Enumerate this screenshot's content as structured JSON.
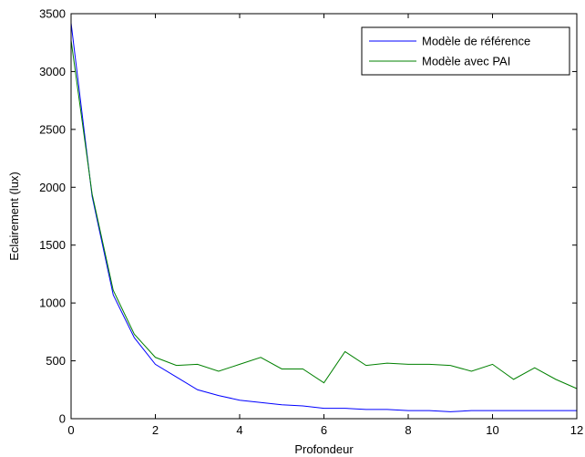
{
  "chart_data": {
    "type": "line",
    "title": "",
    "xlabel": "Profondeur",
    "ylabel": "Eclairement (lux)",
    "xlim": [
      0,
      12
    ],
    "ylim": [
      0,
      3500
    ],
    "xticks": [
      0,
      2,
      4,
      6,
      8,
      10,
      12
    ],
    "yticks": [
      0,
      500,
      1000,
      1500,
      2000,
      2500,
      3000,
      3500
    ],
    "grid": false,
    "legend_position": "top-right",
    "x": [
      0,
      0.5,
      1,
      1.5,
      2,
      2.5,
      3,
      3.5,
      4,
      4.5,
      5,
      5.5,
      6,
      6.5,
      7,
      7.5,
      8,
      8.5,
      9,
      9.5,
      10,
      10.5,
      11,
      11.5,
      12
    ],
    "series": [
      {
        "name": "Modèle de référence",
        "color": "#0000ff",
        "values": [
          3420,
          1920,
          1070,
          700,
          470,
          360,
          250,
          200,
          160,
          140,
          120,
          110,
          90,
          90,
          80,
          80,
          70,
          70,
          60,
          70,
          70,
          70,
          70,
          70,
          70
        ]
      },
      {
        "name": "Modèle avec PAI",
        "color": "#008000",
        "values": [
          3270,
          1940,
          1110,
          730,
          530,
          460,
          470,
          410,
          470,
          530,
          430,
          430,
          310,
          580,
          460,
          480,
          470,
          470,
          460,
          410,
          470,
          340,
          440,
          340,
          260
        ]
      }
    ]
  }
}
